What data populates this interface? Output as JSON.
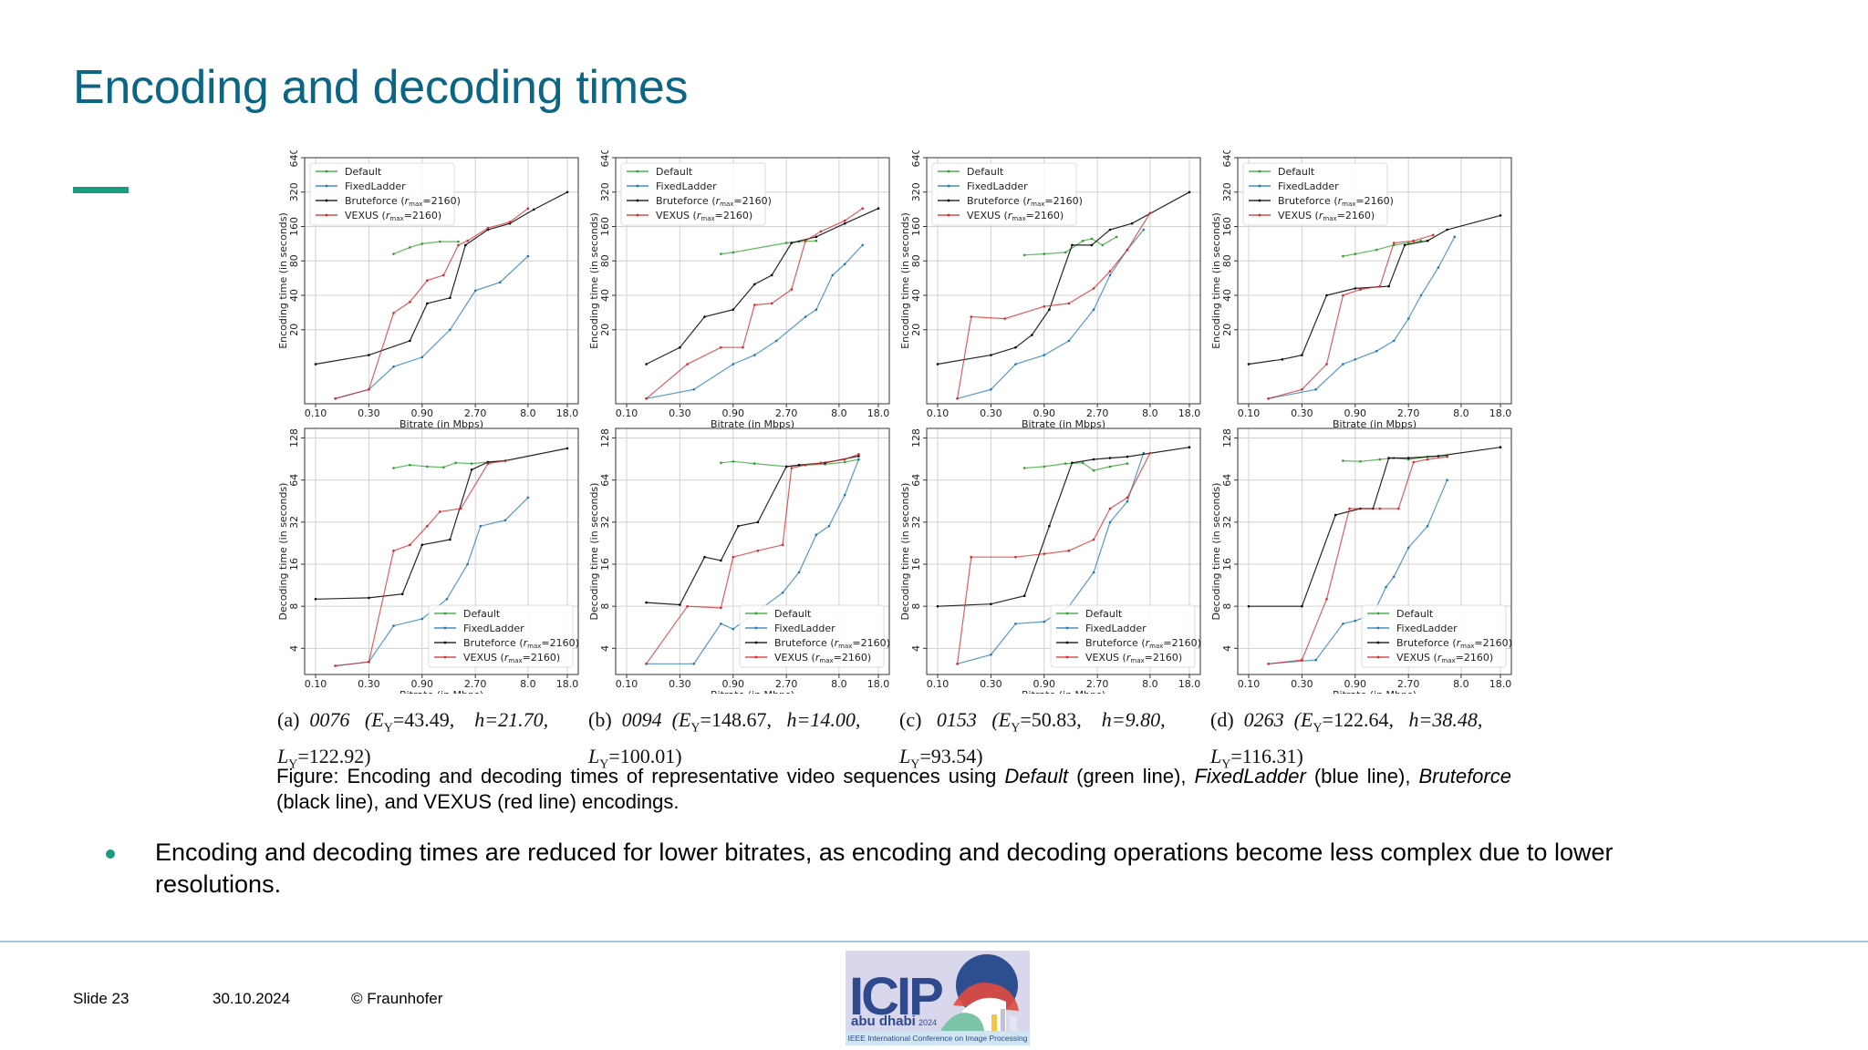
{
  "slide": {
    "title": "Encoding and decoding times",
    "accent_color": "#179c7d",
    "title_color": "#0b6584"
  },
  "legend_labels": [
    "Default",
    "FixedLadder",
    "Bruteforce (r_max=2160)",
    "VEXUS (r_max=2160)"
  ],
  "legend_markup": [
    "Default",
    "FixedLadder",
    "Bruteforce (<tspan font-style=\"italic\">r</tspan><tspan font-size=\"7\" dy=\"2\">max</tspan><tspan dy=\"-2\">=2160)</tspan>",
    "VEXUS (<tspan font-style=\"italic\">r</tspan><tspan font-size=\"7\" dy=\"2\">max</tspan><tspan dy=\"-2\">=2160)</tspan>"
  ],
  "series_colors": [
    "#2ca02c",
    "#1f77b4",
    "#000000",
    "#d62728"
  ],
  "chart_data": [
    {
      "type": "line",
      "row": "encoding",
      "panel": "a",
      "ylabel": "Encoding time (in seconds)",
      "xlabel": "Bitrate (in Mbps)",
      "xticks": [
        "0.10",
        "0.30",
        "0.90",
        "2.70",
        "8.0",
        "18.0"
      ],
      "yticks": [
        "20",
        "40",
        "80",
        "160",
        "320",
        "640"
      ],
      "y_scale": "log",
      "ylim": [
        4.5,
        640
      ],
      "xlim": [
        0.1,
        18.0
      ],
      "legend": "top-left",
      "grid": true,
      "series": [
        {
          "name": "Default",
          "x": [
            0.5,
            0.7,
            0.9,
            1.3,
            1.9
          ],
          "y": [
            92,
            105,
            113,
            118,
            118
          ]
        },
        {
          "name": "FixedLadder",
          "x": [
            0.15,
            0.3,
            0.5,
            0.9,
            1.6,
            2.7,
            4.5,
            8.0
          ],
          "y": [
            5,
            6,
            9.5,
            11.5,
            20,
            44,
            52,
            88
          ]
        },
        {
          "name": "Bruteforce",
          "x": [
            0.1,
            0.3,
            0.7,
            1.0,
            1.6,
            2.2,
            3.5,
            5.5,
            9.0,
            18.0
          ],
          "y": [
            10,
            12,
            16,
            34,
            38,
            110,
            150,
            170,
            225,
            320
          ]
        },
        {
          "name": "VEXUS",
          "x": [
            0.15,
            0.3,
            0.5,
            0.7,
            1.0,
            1.4,
            1.9,
            2.3,
            3.5,
            5.5,
            8.0
          ],
          "y": [
            5,
            6,
            28,
            35,
            54,
            60,
            110,
            120,
            155,
            175,
            230
          ]
        }
      ]
    },
    {
      "type": "line",
      "row": "encoding",
      "panel": "b",
      "ylabel": "Encoding time (in seconds)",
      "xlabel": "Bitrate (in Mbps)",
      "xticks": [
        "0.10",
        "0.30",
        "0.90",
        "2.70",
        "8.0",
        "18.0"
      ],
      "yticks": [
        "20",
        "40",
        "80",
        "160",
        "320",
        "640"
      ],
      "y_scale": "log",
      "ylim": [
        4.5,
        640
      ],
      "xlim": [
        0.1,
        18.0
      ],
      "legend": "top-left",
      "grid": true,
      "series": [
        {
          "name": "Default",
          "x": [
            0.7,
            0.9,
            2.7,
            3.5,
            5.0
          ],
          "y": [
            92,
            95,
            115,
            118,
            120
          ]
        },
        {
          "name": "FixedLadder",
          "x": [
            0.15,
            0.4,
            0.9,
            1.4,
            2.2,
            4.0,
            5.0,
            7.0,
            9.0,
            13.0
          ],
          "y": [
            5,
            6,
            10,
            12,
            16,
            26,
            30,
            60,
            75,
            110
          ]
        },
        {
          "name": "Bruteforce",
          "x": [
            0.15,
            0.3,
            0.5,
            0.9,
            1.4,
            2.0,
            3.0,
            5.0,
            9.0,
            18.0
          ],
          "y": [
            10,
            14,
            26,
            30,
            50,
            60,
            115,
            130,
            170,
            230
          ]
        },
        {
          "name": "VEXUS",
          "x": [
            0.15,
            0.35,
            0.7,
            1.1,
            1.4,
            2.0,
            3.0,
            4.0,
            5.5,
            9.0,
            13.0
          ],
          "y": [
            5,
            10,
            14,
            14,
            33,
            34,
            45,
            120,
            145,
            180,
            230
          ]
        }
      ]
    },
    {
      "type": "line",
      "row": "encoding",
      "panel": "c",
      "ylabel": "Encoding time (in seconds)",
      "xlabel": "Bitrate (in Mbps)",
      "xticks": [
        "0.10",
        "0.30",
        "0.90",
        "2.70",
        "8.0",
        "18.0"
      ],
      "yticks": [
        "20",
        "40",
        "80",
        "160",
        "320",
        "640"
      ],
      "y_scale": "log",
      "ylim": [
        4.5,
        640
      ],
      "xlim": [
        0.1,
        18.0
      ],
      "legend": "top-left",
      "grid": true,
      "series": [
        {
          "name": "Default",
          "x": [
            0.6,
            0.9,
            1.4,
            2.0,
            2.4,
            3.0,
            4.0
          ],
          "y": [
            90,
            92,
            95,
            120,
            125,
            110,
            130
          ]
        },
        {
          "name": "FixedLadder",
          "x": [
            0.15,
            0.3,
            0.5,
            0.9,
            1.5,
            2.5,
            3.5,
            5.0,
            7.0
          ],
          "y": [
            5,
            6,
            10,
            12,
            16,
            30,
            60,
            100,
            150
          ]
        },
        {
          "name": "Bruteforce",
          "x": [
            0.1,
            0.3,
            0.5,
            0.7,
            1.0,
            1.6,
            2.4,
            3.5,
            5.5,
            18.0
          ],
          "y": [
            10,
            12,
            14,
            18,
            30,
            110,
            110,
            150,
            170,
            320
          ]
        },
        {
          "name": "VEXUS",
          "x": [
            0.15,
            0.2,
            0.4,
            0.9,
            1.5,
            2.5,
            3.5,
            5.0,
            8.0
          ],
          "y": [
            5,
            26,
            25,
            32,
            34,
            46,
            65,
            100,
            210
          ]
        }
      ]
    },
    {
      "type": "line",
      "row": "encoding",
      "panel": "d",
      "ylabel": "Encoding time (in seconds)",
      "xlabel": "Bitrate (in Mbps)",
      "xticks": [
        "0.10",
        "0.30",
        "0.90",
        "2.70",
        "8.0",
        "18.0"
      ],
      "yticks": [
        "20",
        "40",
        "80",
        "160",
        "320",
        "640"
      ],
      "y_scale": "log",
      "ylim": [
        4.5,
        640
      ],
      "xlim": [
        0.1,
        18.0
      ],
      "legend": "top-left",
      "grid": true,
      "series": [
        {
          "name": "Default",
          "x": [
            0.7,
            0.9,
            1.4,
            2.0,
            2.7,
            3.5
          ],
          "y": [
            88,
            92,
            100,
            110,
            115,
            120
          ]
        },
        {
          "name": "FixedLadder",
          "x": [
            0.15,
            0.4,
            0.7,
            0.9,
            1.4,
            2.0,
            2.7,
            3.5,
            5.0,
            7.0
          ],
          "y": [
            5,
            6,
            10,
            11,
            13,
            16,
            25,
            40,
            70,
            130
          ]
        },
        {
          "name": "Bruteforce",
          "x": [
            0.1,
            0.2,
            0.3,
            0.5,
            0.9,
            1.8,
            2.5,
            4.0,
            6.0,
            18.0
          ],
          "y": [
            10,
            11,
            12,
            40,
            46,
            48,
            110,
            120,
            150,
            200
          ]
        },
        {
          "name": "VEXUS",
          "x": [
            0.15,
            0.3,
            0.5,
            0.7,
            1.0,
            1.5,
            2.0,
            3.0,
            4.5
          ],
          "y": [
            5,
            6,
            10,
            40,
            45,
            48,
            115,
            120,
            135
          ]
        }
      ]
    },
    {
      "type": "line",
      "row": "decoding",
      "panel": "a",
      "ylabel": "Decoding time (in seconds)",
      "xlabel": "Bitrate (in Mbps)",
      "xticks": [
        "0.10",
        "0.30",
        "0.90",
        "2.70",
        "8.0",
        "18.0"
      ],
      "yticks": [
        "4",
        "8",
        "16",
        "32",
        "64",
        "128"
      ],
      "y_scale": "log",
      "ylim": [
        2.6,
        150
      ],
      "xlim": [
        0.1,
        18.0
      ],
      "legend": "bottom-right",
      "grid": true,
      "series": [
        {
          "name": "Default",
          "x": [
            0.5,
            0.7,
            1.0,
            1.4,
            1.8,
            2.5,
            3.5,
            5.0
          ],
          "y": [
            78,
            82,
            80,
            79,
            85,
            84,
            86,
            88
          ]
        },
        {
          "name": "FixedLadder",
          "x": [
            0.15,
            0.3,
            0.5,
            0.9,
            1.5,
            2.3,
            3.0,
            5.0,
            8.0
          ],
          "y": [
            3,
            3.2,
            5.8,
            6.5,
            9,
            16,
            30,
            33,
            48
          ]
        },
        {
          "name": "Bruteforce",
          "x": [
            0.1,
            0.3,
            0.6,
            0.9,
            1.6,
            2.5,
            3.5,
            5.0,
            18.0
          ],
          "y": [
            9,
            9.2,
            9.8,
            22,
            24,
            76,
            86,
            88,
            108
          ]
        },
        {
          "name": "VEXUS",
          "x": [
            0.15,
            0.3,
            0.5,
            0.7,
            1.0,
            1.3,
            2.0,
            3.5,
            5.0
          ],
          "y": [
            3,
            3.2,
            20,
            22,
            30,
            38,
            40,
            84,
            88
          ]
        }
      ]
    },
    {
      "type": "line",
      "row": "decoding",
      "panel": "b",
      "ylabel": "Decoding time (in seconds)",
      "xlabel": "Bitrate (in Mbps)",
      "xticks": [
        "0.10",
        "0.30",
        "0.90",
        "2.70",
        "8.0",
        "18.0"
      ],
      "yticks": [
        "4",
        "8",
        "16",
        "32",
        "64",
        "128"
      ],
      "y_scale": "log",
      "ylim": [
        2.6,
        150
      ],
      "xlim": [
        0.1,
        18.0
      ],
      "legend": "bottom-right",
      "grid": true,
      "series": [
        {
          "name": "Default",
          "x": [
            0.7,
            0.9,
            1.4,
            2.7,
            4.0,
            6.0,
            9.0,
            12.0
          ],
          "y": [
            85,
            87,
            84,
            80,
            82,
            83,
            86,
            90
          ]
        },
        {
          "name": "FixedLadder",
          "x": [
            0.15,
            0.4,
            0.7,
            0.9,
            2.5,
            3.5,
            5.0,
            6.5,
            9.0,
            12.0
          ],
          "y": [
            3.1,
            3.1,
            6,
            5.5,
            10,
            14,
            26,
            30,
            50,
            90
          ]
        },
        {
          "name": "Bruteforce",
          "x": [
            0.15,
            0.3,
            0.5,
            0.7,
            1.0,
            1.5,
            2.7,
            3.5,
            6.0,
            12.0
          ],
          "y": [
            8.5,
            8.2,
            18,
            17,
            30,
            32,
            80,
            82,
            85,
            95
          ]
        },
        {
          "name": "VEXUS",
          "x": [
            0.15,
            0.35,
            0.7,
            0.9,
            1.5,
            2.5,
            3.0,
            4.0,
            5.5,
            9.0,
            12.0
          ],
          "y": [
            3.1,
            8,
            7.8,
            18,
            20,
            22,
            78,
            82,
            85,
            90,
            98
          ]
        }
      ]
    },
    {
      "type": "line",
      "row": "decoding",
      "panel": "c",
      "ylabel": "Decoding time (in seconds)",
      "xlabel": "Bitrate (in Mbps)",
      "xticks": [
        "0.10",
        "0.30",
        "0.90",
        "2.70",
        "8.0",
        "18.0"
      ],
      "yticks": [
        "4",
        "8",
        "16",
        "32",
        "64",
        "128"
      ],
      "y_scale": "log",
      "ylim": [
        2.6,
        150
      ],
      "xlim": [
        0.1,
        18.0
      ],
      "legend": "bottom-right",
      "grid": true,
      "series": [
        {
          "name": "Default",
          "x": [
            0.6,
            0.9,
            1.4,
            2.0,
            2.5,
            3.5,
            5.0
          ],
          "y": [
            78,
            80,
            84,
            85,
            75,
            80,
            84
          ]
        },
        {
          "name": "FixedLadder",
          "x": [
            0.15,
            0.3,
            0.5,
            0.9,
            1.5,
            2.5,
            3.5,
            5.0,
            7.0
          ],
          "y": [
            3.1,
            3.6,
            6,
            6.2,
            8,
            14,
            32,
            45,
            100
          ]
        },
        {
          "name": "Bruteforce",
          "x": [
            0.1,
            0.3,
            0.6,
            1.0,
            1.6,
            2.5,
            3.5,
            5.0,
            18.0
          ],
          "y": [
            8,
            8.3,
            9.5,
            30,
            85,
            90,
            92,
            94,
            110
          ]
        },
        {
          "name": "VEXUS",
          "x": [
            0.15,
            0.2,
            0.5,
            0.9,
            1.5,
            2.5,
            3.5,
            5.0,
            8.0
          ],
          "y": [
            3.1,
            18,
            18,
            19,
            20,
            24,
            40,
            48,
            100
          ]
        }
      ]
    },
    {
      "type": "line",
      "row": "decoding",
      "panel": "d",
      "ylabel": "Decoding time (in seconds)",
      "xlabel": "Bitrate (in Mbps)",
      "xticks": [
        "0.10",
        "0.30",
        "0.90",
        "2.70",
        "8.0",
        "18.0"
      ],
      "yticks": [
        "4",
        "8",
        "16",
        "32",
        "64",
        "128"
      ],
      "y_scale": "log",
      "ylim": [
        2.6,
        150
      ],
      "xlim": [
        0.1,
        18.0
      ],
      "legend": "bottom-right",
      "grid": true,
      "series": [
        {
          "name": "Default",
          "x": [
            0.7,
            1.0,
            1.5,
            2.0,
            2.7,
            4.0,
            6.0
          ],
          "y": [
            88,
            87,
            90,
            92,
            90,
            94,
            96
          ]
        },
        {
          "name": "FixedLadder",
          "x": [
            0.15,
            0.4,
            0.7,
            0.9,
            1.3,
            1.7,
            2.0,
            2.7,
            4.0,
            6.0
          ],
          "y": [
            3.1,
            3.3,
            6,
            6.3,
            7,
            11,
            13,
            21,
            30,
            64
          ]
        },
        {
          "name": "Bruteforce",
          "x": [
            0.1,
            0.3,
            0.6,
            1.0,
            1.3,
            1.8,
            2.7,
            5.0,
            18.0
          ],
          "y": [
            8,
            8,
            36,
            40,
            40,
            92,
            92,
            95,
            110
          ]
        },
        {
          "name": "VEXUS",
          "x": [
            0.15,
            0.3,
            0.5,
            0.8,
            1.5,
            2.2,
            3.0,
            4.0,
            6.0
          ],
          "y": [
            3.1,
            3.3,
            9,
            40,
            40,
            40,
            86,
            90,
            94
          ]
        }
      ]
    }
  ],
  "subcaptions": [
    {
      "label": "(a)",
      "id": "0076",
      "params": "(E",
      "ey": "=43.49,",
      "h": "h=21.70,",
      "ly": "=122.92)"
    },
    {
      "label": "(b)",
      "id": "0094",
      "params": "(E",
      "ey": "=148.67,",
      "h": "h=14.00,",
      "ly": "=100.01)"
    },
    {
      "label": "(c)",
      "id": "0153",
      "params": "(E",
      "ey": "=50.83,",
      "h": "h=9.80,",
      "ly": "=93.54)"
    },
    {
      "label": "(d)",
      "id": "0263",
      "params": "(E",
      "ey": "=122.64,",
      "h": "h=38.48,",
      "ly": "=116.31)"
    }
  ],
  "caption": {
    "part1": "Figure: Encoding and decoding times of representative video sequences using ",
    "default": "Default",
    "part2": " (green line), ",
    "fixed": "FixedLadder",
    "part3": " (blue line), ",
    "brute": "Bruteforce",
    "part4": " (black line), and VEXUS (red line) encodings."
  },
  "bullet": "Encoding and decoding times are reduced for lower bitrates, as encoding and decoding operations become less complex due to lower resolutions.",
  "footer": {
    "slide": "Slide 23",
    "date": "30.10.2024",
    "copyright": "© Fraunhofer"
  },
  "logo": {
    "icip": "ICIP",
    "city": "abu dhabi",
    "year": "2024",
    "conference": "IEEE International Conference on Image Processing"
  }
}
